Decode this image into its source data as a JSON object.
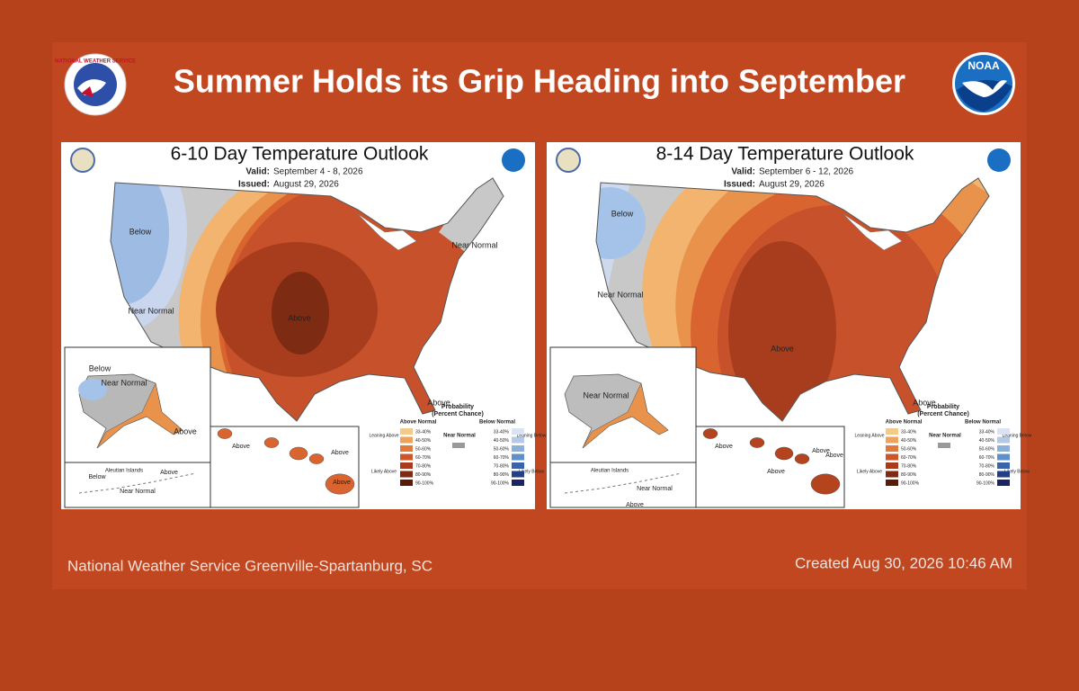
{
  "header": {
    "title": "Summer Holds its Grip Heading into September",
    "left_logo_text": "NATIONAL WEATHER SERVICE",
    "right_logo_text": "NOAA"
  },
  "panels": [
    {
      "title": "6-10 Day Temperature Outlook",
      "valid_label": "Valid:",
      "valid": "September 4 - 8, 2026",
      "issued_label": "Issued:",
      "issued": "August 29, 2026",
      "map_labels": [
        "Below",
        "Near Normal",
        "Above",
        "Near Normal",
        "Above"
      ],
      "alaska_labels": [
        "Below",
        "Near Normal",
        "Above"
      ],
      "hawaii_labels": [
        "Above",
        "Above",
        "Above"
      ],
      "aleutian_title": "Aleutian Islands",
      "aleutian_labels": [
        "Below",
        "Above",
        "Near Normal"
      ]
    },
    {
      "title": "8-14 Day Temperature Outlook",
      "valid_label": "Valid:",
      "valid": "September 6 - 12, 2026",
      "issued_label": "Issued:",
      "issued": "August 29, 2026",
      "map_labels": [
        "Below",
        "Near Normal",
        "Above",
        "Above"
      ],
      "alaska_labels": [
        "Near Normal"
      ],
      "hawaii_labels": [
        "Above",
        "Above",
        "Above",
        "Above"
      ],
      "aleutian_title": "Aleutian Islands",
      "aleutian_labels": [
        "Near Normal",
        "Above"
      ]
    }
  ],
  "legend": {
    "title": "Probability",
    "subtitle": "(Percent Chance)",
    "above_heading": "Above Normal",
    "below_heading": "Below Normal",
    "near": "Near Normal",
    "leaning_above": "Leaning Above",
    "likely_above": "Likely Above",
    "leaning_below": "Leaning Below",
    "likely_below": "Likely Below",
    "ranges": [
      "33-40%",
      "40-50%",
      "50-60%",
      "60-70%",
      "70-80%",
      "80-90%",
      "90-100%"
    ]
  },
  "footer": {
    "left": "National Weather Service Greenville-Spartanburg, SC",
    "right": "Created Aug 30, 2026 10:46 AM"
  }
}
